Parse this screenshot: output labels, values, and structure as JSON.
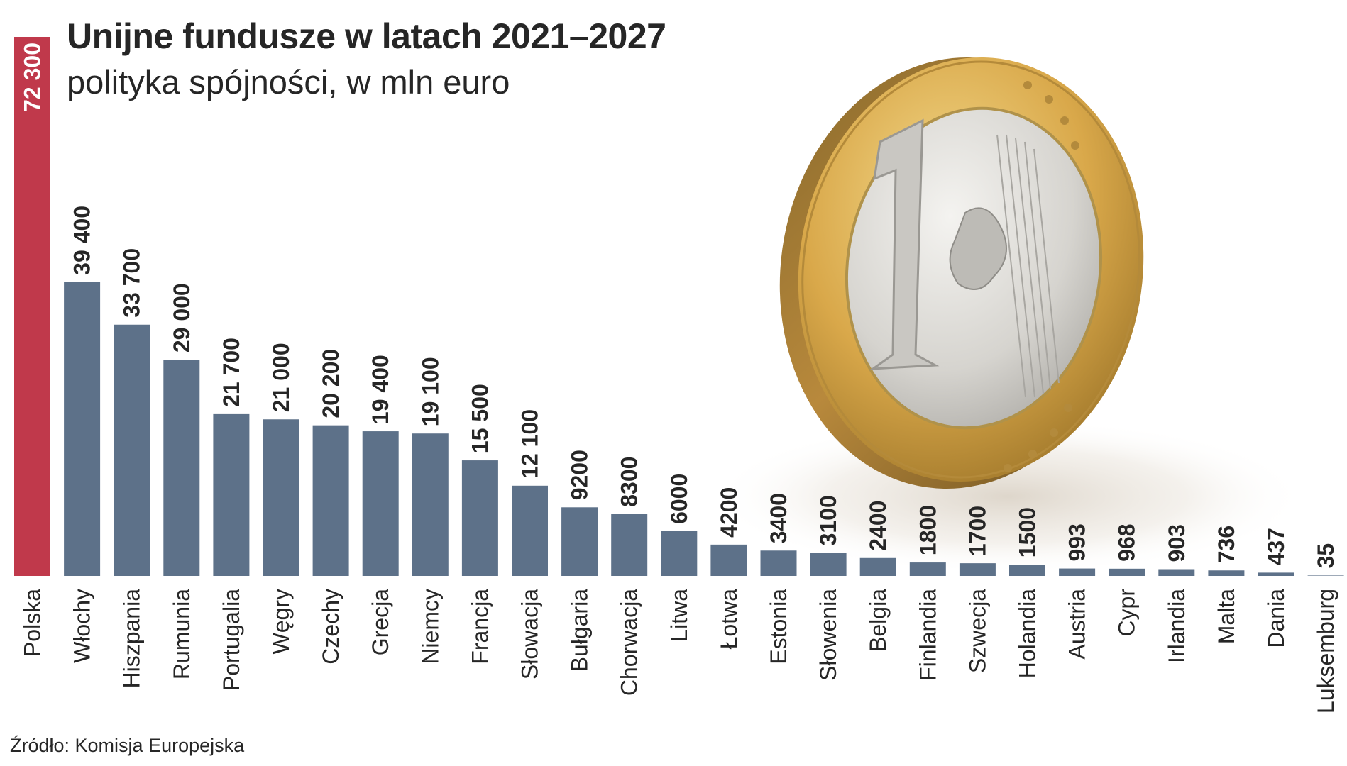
{
  "header": {
    "title": "Unijne fundusze w latach 2021–2027",
    "subtitle": "polityka spójności, w mln euro"
  },
  "footer": {
    "source": "Źródło: Komisja Europejska"
  },
  "colors": {
    "highlight": "#c0394b",
    "bar": "#5d7189",
    "text": "#262626",
    "coin_gold": "#d9a84a",
    "coin_silver": "#d6d4cf"
  },
  "illustration": "one-euro-coin",
  "chart_data": {
    "type": "bar",
    "orientation": "vertical",
    "title": "Unijne fundusze w latach 2021–2027",
    "subtitle": "polityka spójności, w mln euro",
    "categories": [
      "Polska",
      "Włochy",
      "Hiszpania",
      "Rumunia",
      "Portugalia",
      "Węgry",
      "Czechy",
      "Grecja",
      "Niemcy",
      "Francja",
      "Słowacja",
      "Bułgaria",
      "Chorwacja",
      "Litwa",
      "Łotwa",
      "Estonia",
      "Słowenia",
      "Belgia",
      "Finlandia",
      "Szwecja",
      "Holandia",
      "Austria",
      "Cypr",
      "Irlandia",
      "Malta",
      "Dania",
      "Luksemburg"
    ],
    "values": [
      72300,
      39400,
      33700,
      29000,
      21700,
      21000,
      20200,
      19400,
      19100,
      15500,
      12100,
      9200,
      8300,
      6000,
      4200,
      3400,
      3100,
      2400,
      1800,
      1700,
      1500,
      993,
      968,
      903,
      736,
      437,
      35
    ],
    "value_labels": [
      "72 300",
      "39 400",
      "33 700",
      "29 000",
      "21 700",
      "21 000",
      "20 200",
      "19 400",
      "19 100",
      "15 500",
      "12 100",
      "9200",
      "8300",
      "6000",
      "4200",
      "3400",
      "3100",
      "2400",
      "1800",
      "1700",
      "1500",
      "993",
      "968",
      "903",
      "736",
      "437",
      "35"
    ],
    "highlight_category": "Polska",
    "xlabel": "",
    "ylabel": "",
    "ylim": [
      0,
      72300
    ],
    "grid": false,
    "legend": "none"
  }
}
